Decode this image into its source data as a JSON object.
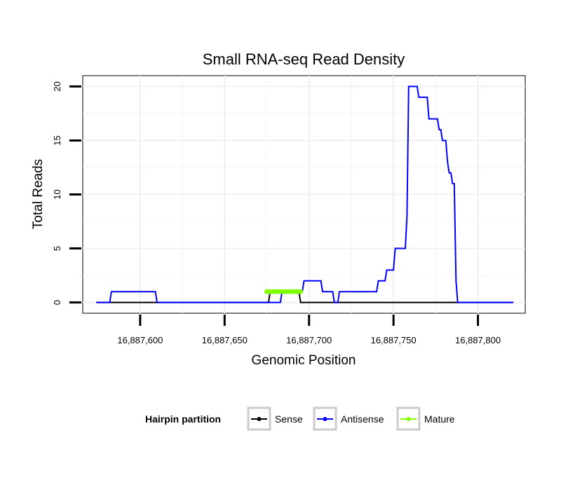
{
  "chart_data": {
    "type": "line",
    "title": "Small RNA-seq Read Density",
    "xlabel": "Genomic Position",
    "ylabel": "Total Reads",
    "xlim": [
      16887566,
      16887828
    ],
    "ylim": [
      -1,
      21
    ],
    "x_ticks": [
      16887600,
      16887650,
      16887700,
      16887750,
      16887800
    ],
    "x_tick_labels": [
      "16,887,600",
      "16,887,650",
      "16,887,700",
      "16,887,750",
      "16,887,800"
    ],
    "y_ticks": [
      0,
      5,
      10,
      15,
      20
    ],
    "y_tick_labels": [
      "0",
      "5",
      "10",
      "15",
      "20"
    ],
    "grid": true,
    "legend": {
      "title": "Hairpin partition",
      "placement": "bottom",
      "entries": [
        "Sense",
        "Antisense",
        "Mature"
      ]
    },
    "series": [
      {
        "name": "Sense",
        "color": "#000000",
        "points": [
          [
            16887574,
            0
          ],
          [
            16887676,
            0
          ],
          [
            16887677,
            1
          ],
          [
            16887694,
            1
          ],
          [
            16887695,
            0
          ],
          [
            16887821,
            0
          ]
        ]
      },
      {
        "name": "Antisense",
        "color": "#0000ff",
        "points": [
          [
            16887574,
            0
          ],
          [
            16887582,
            0
          ],
          [
            16887583,
            1
          ],
          [
            16887609,
            1
          ],
          [
            16887610,
            0
          ],
          [
            16887683,
            0
          ],
          [
            16887684,
            1
          ],
          [
            16887696,
            1
          ],
          [
            16887697,
            2
          ],
          [
            16887707,
            2
          ],
          [
            16887708,
            1
          ],
          [
            16887714,
            1
          ],
          [
            16887715,
            0
          ],
          [
            16887717,
            0
          ],
          [
            16887718,
            1
          ],
          [
            16887740,
            1
          ],
          [
            16887741,
            2
          ],
          [
            16887745,
            2
          ],
          [
            16887746,
            3
          ],
          [
            16887750,
            3
          ],
          [
            16887751,
            5
          ],
          [
            16887757,
            5
          ],
          [
            16887758,
            8
          ],
          [
            16887759,
            20
          ],
          [
            16887764,
            20
          ],
          [
            16887765,
            19
          ],
          [
            16887770,
            19
          ],
          [
            16887771,
            17
          ],
          [
            16887776,
            17
          ],
          [
            16887777,
            16
          ],
          [
            16887778,
            16
          ],
          [
            16887779,
            15
          ],
          [
            16887781,
            15
          ],
          [
            16887782,
            13
          ],
          [
            16887783,
            12
          ],
          [
            16887784,
            12
          ],
          [
            16887785,
            11
          ],
          [
            16887786,
            11
          ],
          [
            16887787,
            2
          ],
          [
            16887788,
            0
          ],
          [
            16887821,
            0
          ]
        ]
      },
      {
        "name": "Mature",
        "color": "#7fff00",
        "points": [
          [
            16887675,
            1
          ],
          [
            16887677,
            1
          ],
          [
            16887679,
            1
          ],
          [
            16887681,
            1
          ],
          [
            16887683,
            1
          ],
          [
            16887685,
            1
          ],
          [
            16887687,
            1
          ],
          [
            16887689,
            1
          ],
          [
            16887691,
            1
          ],
          [
            16887693,
            1
          ],
          [
            16887695,
            1
          ]
        ]
      }
    ]
  }
}
